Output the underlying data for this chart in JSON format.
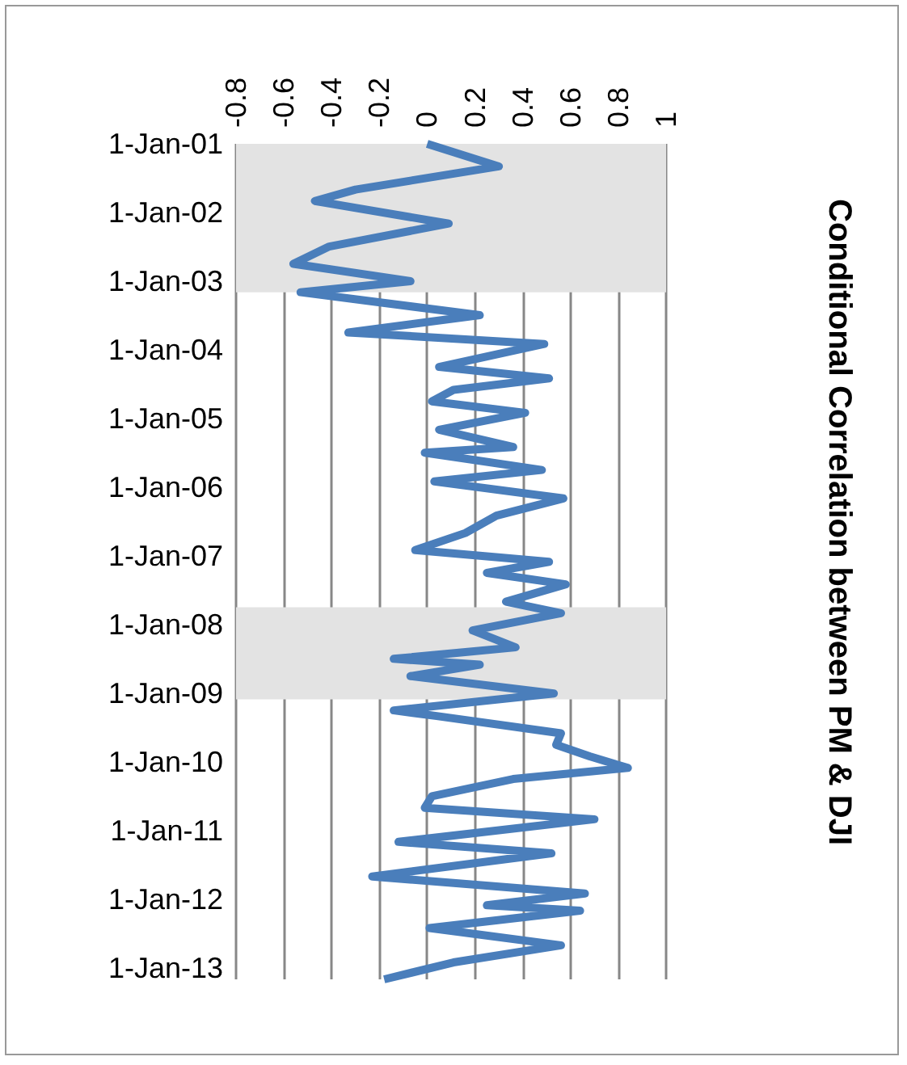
{
  "chart_data": {
    "type": "line",
    "title": "Conditional Correlation between PM & DJI",
    "orientation": "horizontal",
    "x": [
      "2001-01",
      "2001-05",
      "2001-09",
      "2001-11",
      "2002-03",
      "2002-07",
      "2002-10",
      "2003-01",
      "2003-03",
      "2003-07",
      "2003-10",
      "2003-12",
      "2004-04",
      "2004-06",
      "2004-08",
      "2004-10",
      "2004-12",
      "2005-03",
      "2005-06",
      "2005-07",
      "2005-10",
      "2005-12",
      "2006-03",
      "2006-06",
      "2006-09",
      "2006-12",
      "2007-02",
      "2007-04",
      "2007-06",
      "2007-09",
      "2007-11",
      "2008-02",
      "2008-05",
      "2008-07",
      "2008-08",
      "2008-10",
      "2009-01",
      "2009-04",
      "2009-05",
      "2009-08",
      "2009-10",
      "2009-12",
      "2010-02",
      "2010-04",
      "2010-07",
      "2010-09",
      "2010-11",
      "2011-03",
      "2011-05",
      "2011-09",
      "2011-12",
      "2012-02",
      "2012-03",
      "2012-06",
      "2012-09",
      "2012-12",
      "2013-03"
    ],
    "values": [
      0.0,
      0.3,
      -0.3,
      -0.47,
      0.09,
      -0.41,
      -0.56,
      -0.07,
      -0.53,
      0.22,
      -0.33,
      0.49,
      0.05,
      0.51,
      0.11,
      0.02,
      0.41,
      0.05,
      0.36,
      -0.01,
      0.48,
      0.03,
      0.57,
      0.29,
      0.16,
      -0.05,
      0.51,
      0.25,
      0.58,
      0.33,
      0.56,
      0.19,
      0.37,
      -0.14,
      0.22,
      -0.07,
      0.53,
      -0.14,
      0.04,
      0.56,
      0.54,
      0.68,
      0.84,
      0.36,
      0.02,
      -0.01,
      0.7,
      -0.12,
      0.52,
      -0.23,
      0.66,
      0.25,
      0.64,
      0.01,
      0.56,
      0.11,
      -0.18
    ],
    "color": "#4a7ebb",
    "marker": "none",
    "ylim": [
      "2013-03-01",
      "2001-01-01"
    ],
    "yticks": [
      {
        "value": "2001-01-01",
        "label": "1-Jan-01"
      },
      {
        "value": "2002-01-01",
        "label": "1-Jan-02"
      },
      {
        "value": "2003-01-01",
        "label": "1-Jan-03"
      },
      {
        "value": "2004-01-01",
        "label": "1-Jan-04"
      },
      {
        "value": "2005-01-01",
        "label": "1-Jan-05"
      },
      {
        "value": "2006-01-01",
        "label": "1-Jan-06"
      },
      {
        "value": "2007-01-01",
        "label": "1-Jan-07"
      },
      {
        "value": "2008-01-01",
        "label": "1-Jan-08"
      },
      {
        "value": "2009-01-01",
        "label": "1-Jan-09"
      },
      {
        "value": "2010-01-01",
        "label": "1-Jan-10"
      },
      {
        "value": "2011-01-01",
        "label": "1-Jan-11"
      },
      {
        "value": "2012-01-01",
        "label": "1-Jan-12"
      },
      {
        "value": "2013-01-01",
        "label": "1-Jan-13"
      }
    ],
    "xlim": [
      -0.8,
      1
    ],
    "xticks": [
      -0.8,
      -0.6,
      -0.4,
      -0.2,
      0,
      0.2,
      0.4,
      0.6,
      0.8,
      1
    ],
    "grid": "x",
    "bands": [
      {
        "axis": "y",
        "from": "2001-01",
        "to": "2003-03",
        "color": "#e3e3e3"
      },
      {
        "axis": "y",
        "from": "2007-10",
        "to": "2009-02",
        "color": "#e3e3e3"
      }
    ]
  }
}
